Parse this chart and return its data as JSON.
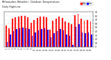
{
  "title": "Milwaukee Weather  Outdoor Temperature",
  "subtitle": "Daily High/Low",
  "high_color": "#ff0000",
  "low_color": "#0000ff",
  "bg_color": "#ffffff",
  "ylim": [
    0,
    90
  ],
  "yticks": [
    0,
    10,
    20,
    30,
    40,
    50,
    60,
    70,
    80,
    90
  ],
  "highs": [
    55,
    48,
    72,
    76,
    78,
    80,
    80,
    76,
    62,
    70,
    74,
    78,
    78,
    76,
    45,
    68,
    72,
    78,
    74,
    66,
    62,
    58,
    82,
    86,
    72,
    68,
    70,
    66
  ],
  "lows": [
    12,
    32,
    40,
    46,
    48,
    50,
    48,
    46,
    28,
    38,
    43,
    46,
    48,
    44,
    24,
    36,
    40,
    46,
    42,
    32,
    28,
    5,
    52,
    58,
    38,
    36,
    38,
    32
  ],
  "xlabels": [
    "1",
    "2",
    "3",
    "4",
    "5",
    "6",
    "7",
    "8",
    "9",
    "10",
    "11",
    "12",
    "13",
    "14",
    "15",
    "16",
    "17",
    "18",
    "19",
    "20",
    "21",
    "22",
    "23",
    "24",
    "25",
    "26",
    "27",
    "28"
  ],
  "dotted_vline_x": 21.5,
  "bar_width": 0.38,
  "legend_high": "High",
  "legend_low": "Low"
}
